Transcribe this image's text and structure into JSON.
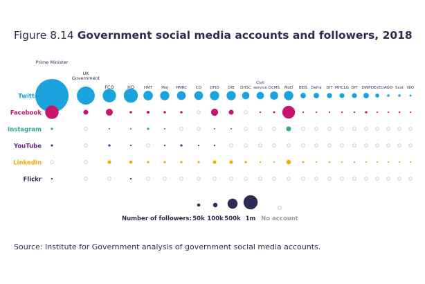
{
  "figure": {
    "number": "Figure 8.14",
    "title": "Government social media accounts and followers, 2018"
  },
  "source": "Source: Institute for Government analysis of government social media accounts.",
  "colors": {
    "Twitter": "#1aa3dc",
    "Facebook": "#c8146e",
    "Instagram": "#2eaa96",
    "YouTube": "#6b2383",
    "LinkedIn": "#f1ab00",
    "Flickr": "#2b2d52",
    "no_account": "#c8c8c8",
    "legend": "#2b2d52"
  },
  "chart_data": {
    "type": "bubble-matrix",
    "unit": "followers",
    "platforms": [
      "Twitter",
      "Facebook",
      "Instagram",
      "YouTube",
      "LinkedIn",
      "Flickr"
    ],
    "departments": [
      "Prime Minister",
      "UK Government",
      "FCO",
      "HO",
      "HMT",
      "MoJ",
      "HMRC",
      "CO",
      "DFID",
      "DfE",
      "DHSC",
      "Civil service",
      "DCMS",
      "MoD",
      "BEIS",
      "Defra",
      "DIT",
      "MHCLG",
      "DfT",
      "DWP",
      "DExEU",
      "AGO",
      "Scot",
      "NIO"
    ],
    "values": [
      [
        5500000,
        1600000,
        900000,
        1000000,
        450000,
        420000,
        380000,
        380000,
        420000,
        420000,
        270000,
        270000,
        330000,
        430000,
        150000,
        150000,
        130000,
        120000,
        120000,
        150000,
        80000,
        30000,
        30000,
        20000
      ],
      [
        900000,
        120000,
        240000,
        30000,
        40000,
        30000,
        30000,
        null,
        250000,
        120000,
        null,
        10000,
        20000,
        800000,
        8000,
        5000,
        5000,
        3000,
        3000,
        25000,
        2000,
        3000,
        15000,
        3000
      ],
      [
        25000,
        null,
        5000,
        10000,
        25000,
        5000,
        null,
        null,
        5000,
        10000,
        null,
        null,
        null,
        120000,
        null,
        null,
        null,
        null,
        null,
        null,
        null,
        null,
        null,
        null
      ],
      [
        25000,
        null,
        25000,
        5000,
        null,
        5000,
        25000,
        5000,
        5000,
        null,
        null,
        null,
        null,
        null,
        null,
        null,
        null,
        null,
        null,
        null,
        null,
        null,
        null,
        null
      ],
      [
        null,
        null,
        60000,
        50000,
        25000,
        25000,
        25000,
        25000,
        60000,
        60000,
        25000,
        5000,
        5000,
        100000,
        20000,
        5000,
        15000,
        5000,
        10000,
        10000,
        3000,
        2000,
        2000,
        1000
      ],
      [
        10000,
        null,
        null,
        10000,
        null,
        null,
        null,
        null,
        null,
        null,
        null,
        null,
        null,
        null,
        null,
        null,
        null,
        null,
        null,
        null,
        null,
        null,
        null,
        null
      ]
    ],
    "legend": {
      "label": "Number of followers:",
      "sizes": [
        {
          "value": 50000,
          "label": "50k"
        },
        {
          "value": 100000,
          "label": "100k"
        },
        {
          "value": 500000,
          "label": "500k"
        },
        {
          "value": 1000000,
          "label": "1m"
        }
      ],
      "no_account_label": "No account"
    }
  }
}
